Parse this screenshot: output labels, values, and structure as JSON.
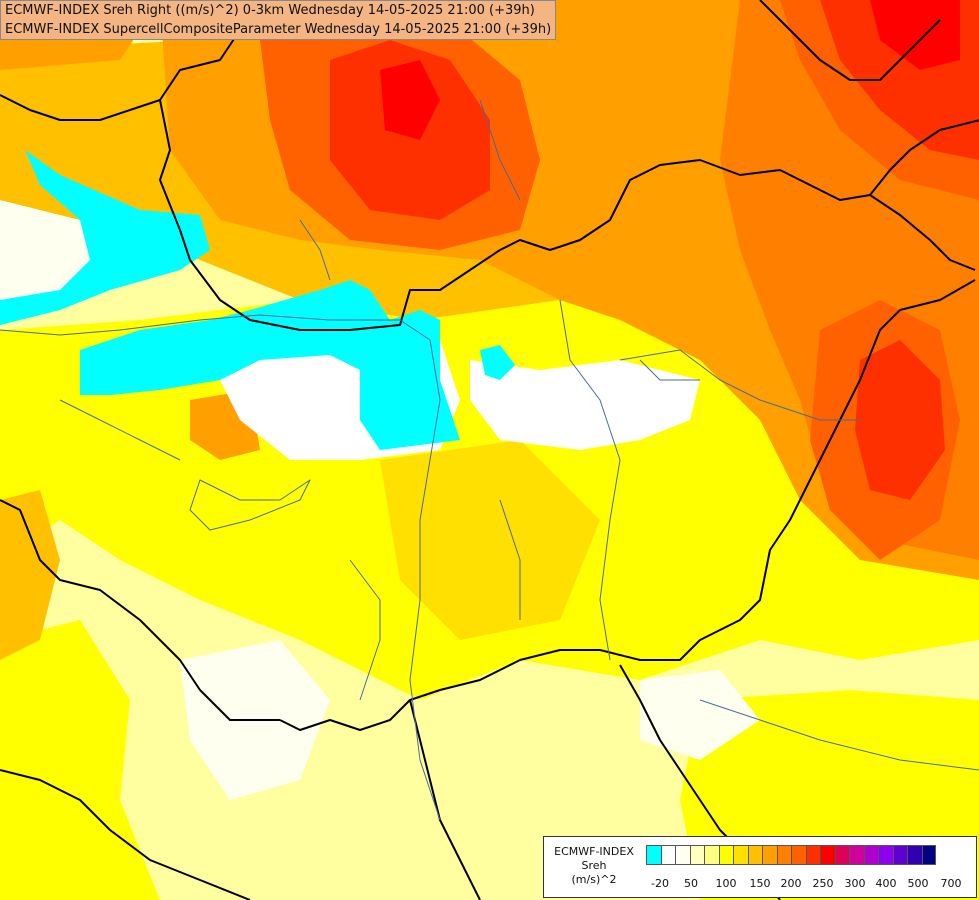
{
  "header": {
    "line1": "ECMWF-INDEX Sreh Right ((m/s)^2) 0-3km Wednesday 14-05-2025 21:00 (+39h)",
    "line2": "ECMWF-INDEX SupercellCompositeParameter Wednesday 14-05-2025 21:00 (+39h)"
  },
  "legend": {
    "title_line1": "ECMWF-INDEX",
    "title_line2": "Sreh",
    "title_line3": "(m/s)^2",
    "colors": [
      "#00ffff",
      "#ffffff",
      "#fffff0",
      "#ffffc0",
      "#ffff80",
      "#ffff00",
      "#ffe000",
      "#ffc000",
      "#ffa000",
      "#ff8000",
      "#ff6000",
      "#ff3000",
      "#ff0000",
      "#e0005a",
      "#d0009c",
      "#b000d0",
      "#9000f0",
      "#6000d0",
      "#3000b0",
      "#000080"
    ],
    "tick_labels": [
      "-20",
      "50",
      "100",
      "150",
      "200",
      "250",
      "300",
      "400",
      "500",
      "700"
    ]
  },
  "map_colors": {
    "base": "#ffffa0",
    "yellow": "#ffff00",
    "gold": "#ffe000",
    "orange_light": "#ffc000",
    "orange": "#ffa000",
    "orange_dark": "#ff8000",
    "red_orange": "#ff6000",
    "red": "#ff3000",
    "deep_red": "#ff0000",
    "cyan": "#00ffff",
    "white": "#ffffff",
    "pale": "#fffff0",
    "border": "#000000",
    "river": "#4a6a9a"
  }
}
